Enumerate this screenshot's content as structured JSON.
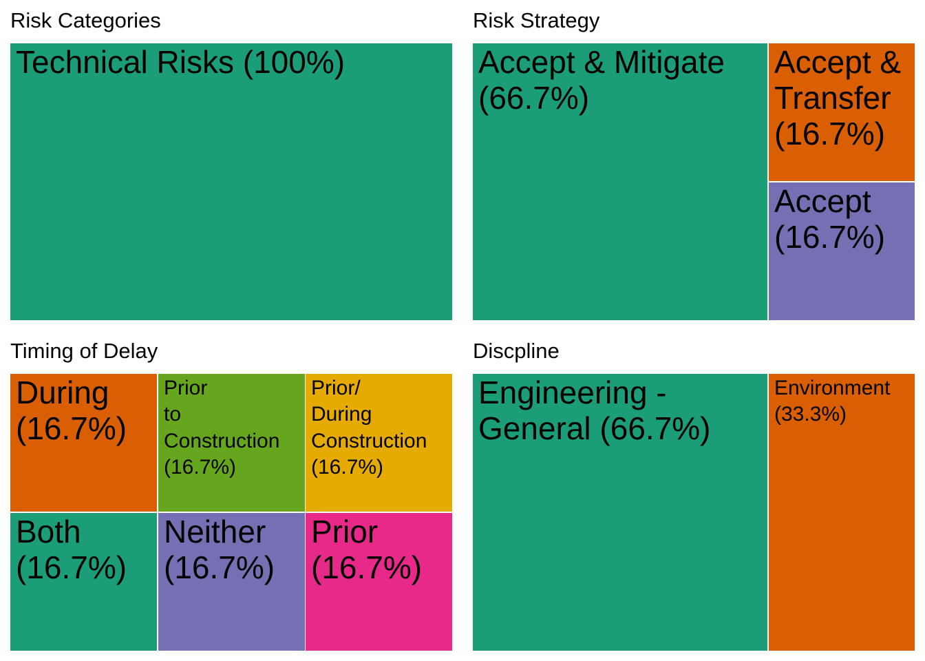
{
  "colors": {
    "teal": "#1b9e77",
    "orange": "#d95f02",
    "purple": "#7570b3",
    "green": "#66a61e",
    "gold": "#e6ab02",
    "pink": "#e7298a"
  },
  "chart_data": [
    {
      "type": "treemap",
      "title": "Risk Categories",
      "items": [
        {
          "name": "Technical Risks",
          "value": 100,
          "label": "Technical Risks (100%)",
          "color": "#1b9e77"
        }
      ]
    },
    {
      "type": "treemap",
      "title": "Risk Strategy",
      "items": [
        {
          "name": "Accept & Mitigate",
          "value": 66.7,
          "label": "Accept & Mitigate\n(66.7%)",
          "color": "#1b9e77"
        },
        {
          "name": "Accept & Transfer",
          "value": 16.7,
          "label": "Accept &\nTransfer\n(16.7%)",
          "color": "#d95f02"
        },
        {
          "name": "Accept",
          "value": 16.7,
          "label": "Accept\n(16.7%)",
          "color": "#7570b3"
        }
      ]
    },
    {
      "type": "treemap",
      "title": "Timing of Delay",
      "items": [
        {
          "name": "During",
          "value": 16.7,
          "label": "During\n(16.7%)",
          "color": "#d95f02"
        },
        {
          "name": "Prior to Construction",
          "value": 16.7,
          "label": "Prior\nto\nConstruction\n(16.7%)",
          "color": "#66a61e"
        },
        {
          "name": "Prior/ During Construction",
          "value": 16.7,
          "label": "Prior/\nDuring\nConstruction\n(16.7%)",
          "color": "#e6ab02"
        },
        {
          "name": "Both",
          "value": 16.7,
          "label": "Both\n(16.7%)",
          "color": "#1b9e77"
        },
        {
          "name": "Neither",
          "value": 16.7,
          "label": "Neither\n(16.7%)",
          "color": "#7570b3"
        },
        {
          "name": "Prior",
          "value": 16.7,
          "label": "Prior\n(16.7%)",
          "color": "#e7298a"
        }
      ]
    },
    {
      "type": "treemap",
      "title": "Discpline",
      "items": [
        {
          "name": "Engineering - General",
          "value": 66.7,
          "label": "Engineering -\nGeneral (66.7%)",
          "color": "#1b9e77"
        },
        {
          "name": "Environment",
          "value": 33.3,
          "label": "Environment\n(33.3%)",
          "color": "#d95f02"
        }
      ]
    }
  ]
}
